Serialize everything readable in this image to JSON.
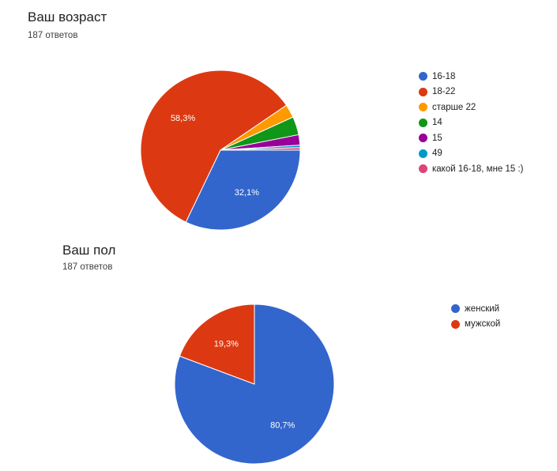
{
  "charts": [
    {
      "title": "Ваш возраст",
      "responses": "187 ответов"
    },
    {
      "title": "Ваш пол",
      "responses": "187 ответов"
    }
  ],
  "chart_data": [
    {
      "type": "pie",
      "title": "Ваш возраст",
      "legend_position": "right",
      "start_angle_deg": 90,
      "slices": [
        {
          "label": "16-18",
          "value": 32.1,
          "color": "#3366cc",
          "display": "32,1%"
        },
        {
          "label": "18-22",
          "value": 58.3,
          "color": "#dc3912",
          "display": "58,3%"
        },
        {
          "label": "старше 22",
          "value": 2.7,
          "color": "#ff9900",
          "display": ""
        },
        {
          "label": "14",
          "value": 3.7,
          "color": "#109618",
          "display": ""
        },
        {
          "label": "15",
          "value": 2.1,
          "color": "#990099",
          "display": ""
        },
        {
          "label": "49",
          "value": 0.5,
          "color": "#0099c6",
          "display": ""
        },
        {
          "label": "какой 16-18, мне 15 :)",
          "value": 0.5,
          "color": "#dd4477",
          "display": ""
        }
      ]
    },
    {
      "type": "pie",
      "title": "Ваш пол",
      "legend_position": "right",
      "start_angle_deg": 0,
      "slices": [
        {
          "label": "женский",
          "value": 80.7,
          "color": "#3366cc",
          "display": "80,7%"
        },
        {
          "label": "мужской",
          "value": 19.3,
          "color": "#dc3912",
          "display": "19,3%"
        }
      ]
    }
  ]
}
